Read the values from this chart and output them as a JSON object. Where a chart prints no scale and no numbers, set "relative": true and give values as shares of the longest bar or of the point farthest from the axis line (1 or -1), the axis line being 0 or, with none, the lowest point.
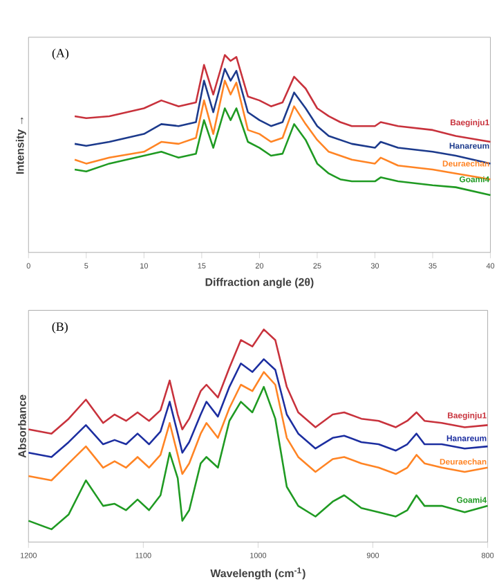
{
  "chart_data": [
    {
      "type": "line",
      "relative": true,
      "xlabel": "Diffraction angle (2θ)",
      "ylabel": "Intensity →",
      "annotations": [
        "(A)"
      ],
      "xlim": [
        0,
        40
      ],
      "xticks": [
        0,
        5,
        10,
        15,
        20,
        25,
        30,
        35,
        40
      ],
      "x": [
        4,
        5,
        7,
        10,
        11.5,
        13,
        14.5,
        15.2,
        16,
        17,
        17.5,
        18,
        19,
        20,
        21,
        22,
        23,
        24,
        25,
        26,
        27,
        28,
        30,
        30.5,
        32,
        35,
        37,
        40
      ],
      "series": [
        {
          "name": "Baeginju1",
          "color": "#c8323c",
          "values": [
            0.69,
            0.68,
            0.69,
            0.73,
            0.77,
            0.74,
            0.76,
            0.95,
            0.8,
            1.0,
            0.97,
            0.99,
            0.79,
            0.77,
            0.74,
            0.76,
            0.89,
            0.83,
            0.73,
            0.69,
            0.66,
            0.64,
            0.64,
            0.66,
            0.64,
            0.62,
            0.59,
            0.56
          ]
        },
        {
          "name": "Hanareum",
          "color": "#1c3a8c",
          "values": [
            0.55,
            0.54,
            0.56,
            0.6,
            0.65,
            0.64,
            0.66,
            0.87,
            0.71,
            0.93,
            0.87,
            0.92,
            0.71,
            0.67,
            0.64,
            0.66,
            0.81,
            0.73,
            0.64,
            0.59,
            0.57,
            0.55,
            0.53,
            0.56,
            0.53,
            0.51,
            0.49,
            0.45
          ]
        },
        {
          "name": "Deuraechan",
          "color": "#ff8424",
          "values": [
            0.47,
            0.45,
            0.48,
            0.51,
            0.56,
            0.55,
            0.58,
            0.77,
            0.6,
            0.87,
            0.8,
            0.86,
            0.62,
            0.6,
            0.56,
            0.58,
            0.74,
            0.65,
            0.57,
            0.51,
            0.49,
            0.47,
            0.45,
            0.48,
            0.44,
            0.42,
            0.4,
            0.37
          ]
        },
        {
          "name": "Goami4",
          "color": "#1f9a22",
          "values": [
            0.42,
            0.41,
            0.45,
            0.49,
            0.51,
            0.48,
            0.5,
            0.67,
            0.53,
            0.73,
            0.67,
            0.73,
            0.56,
            0.53,
            0.49,
            0.5,
            0.65,
            0.57,
            0.45,
            0.4,
            0.37,
            0.36,
            0.36,
            0.38,
            0.36,
            0.34,
            0.33,
            0.29
          ]
        }
      ]
    },
    {
      "type": "line",
      "relative": true,
      "xlabel": "Wavelength (cm$^{-1}$)",
      "ylabel": "Absorbance",
      "annotations": [
        "(B)"
      ],
      "xlim": [
        1200,
        800
      ],
      "xticks": [
        1200,
        1100,
        1000,
        900,
        800
      ],
      "x": [
        1200,
        1180,
        1165,
        1150,
        1135,
        1125,
        1115,
        1105,
        1095,
        1085,
        1077,
        1070,
        1066,
        1060,
        1050,
        1045,
        1035,
        1025,
        1015,
        1005,
        995,
        985,
        975,
        965,
        950,
        935,
        925,
        910,
        895,
        880,
        870,
        862,
        855,
        840,
        820,
        800
      ],
      "series": [
        {
          "name": "Baeginju1",
          "color": "#c8323c",
          "values": [
            0.53,
            0.51,
            0.58,
            0.67,
            0.56,
            0.6,
            0.57,
            0.61,
            0.57,
            0.62,
            0.76,
            0.6,
            0.53,
            0.58,
            0.71,
            0.74,
            0.68,
            0.82,
            0.95,
            0.92,
            1.0,
            0.95,
            0.73,
            0.61,
            0.54,
            0.6,
            0.61,
            0.58,
            0.57,
            0.54,
            0.57,
            0.61,
            0.57,
            0.56,
            0.54,
            0.55
          ]
        },
        {
          "name": "Hanareum",
          "color": "#1c2ea0",
          "values": [
            0.42,
            0.4,
            0.47,
            0.55,
            0.46,
            0.48,
            0.46,
            0.51,
            0.46,
            0.52,
            0.66,
            0.51,
            0.42,
            0.47,
            0.6,
            0.66,
            0.59,
            0.73,
            0.84,
            0.8,
            0.86,
            0.81,
            0.6,
            0.51,
            0.44,
            0.49,
            0.5,
            0.47,
            0.46,
            0.43,
            0.46,
            0.51,
            0.46,
            0.46,
            0.44,
            0.45
          ]
        },
        {
          "name": "Deuraechan",
          "color": "#ff8424",
          "values": [
            0.31,
            0.29,
            0.37,
            0.45,
            0.35,
            0.38,
            0.35,
            0.4,
            0.35,
            0.41,
            0.56,
            0.41,
            0.32,
            0.37,
            0.51,
            0.56,
            0.49,
            0.63,
            0.74,
            0.71,
            0.8,
            0.74,
            0.49,
            0.4,
            0.33,
            0.39,
            0.4,
            0.37,
            0.35,
            0.32,
            0.35,
            0.41,
            0.37,
            0.35,
            0.33,
            0.35
          ]
        },
        {
          "name": "Goami4",
          "color": "#1f9a22",
          "values": [
            0.1,
            0.06,
            0.13,
            0.29,
            0.17,
            0.18,
            0.15,
            0.2,
            0.15,
            0.22,
            0.42,
            0.3,
            0.1,
            0.15,
            0.37,
            0.4,
            0.35,
            0.57,
            0.66,
            0.61,
            0.73,
            0.58,
            0.26,
            0.17,
            0.12,
            0.19,
            0.22,
            0.16,
            0.14,
            0.12,
            0.15,
            0.22,
            0.17,
            0.17,
            0.14,
            0.17
          ]
        }
      ]
    }
  ]
}
